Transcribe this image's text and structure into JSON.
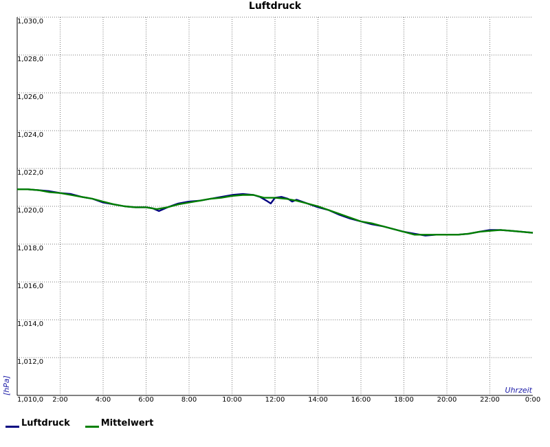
{
  "chart_data": {
    "type": "line",
    "title": "Luftdruck",
    "ylabel": "[hPa]",
    "xlabel": "Uhrzeit",
    "ylim": [
      1010.0,
      1030.0
    ],
    "xlim": [
      0,
      24
    ],
    "yticks": [
      "1,010,0",
      "1,012,0",
      "1,014,0",
      "1,016,0",
      "1,018,0",
      "1,020,0",
      "1,022,0",
      "1,024,0",
      "1,026,0",
      "1,028,0",
      "1,030,0"
    ],
    "xticks": [
      "2:00",
      "4:00",
      "6:00",
      "8:00",
      "10:00",
      "12:00",
      "14:00",
      "16:00",
      "18:00",
      "20:00",
      "22:00",
      "0:00"
    ],
    "grid": true,
    "legend_position": "bottom-left",
    "series": [
      {
        "name": "Luftdruck",
        "color": "#000080",
        "x": [
          0,
          0.5,
          1,
          1.5,
          2,
          2.5,
          3,
          3.5,
          4,
          4.5,
          5,
          5.5,
          6,
          6.3,
          6.6,
          7,
          7.5,
          8,
          8.5,
          9,
          9.5,
          10,
          10.5,
          11,
          11.3,
          11.6,
          11.8,
          12,
          12.3,
          12.6,
          12.8,
          13,
          13.5,
          14,
          14.5,
          15,
          15.5,
          16,
          16.5,
          17,
          17.5,
          18,
          18.5,
          19,
          19.5,
          20,
          20.5,
          21,
          21.5,
          22,
          22.5,
          23,
          23.5,
          24
        ],
        "y": [
          1020.9,
          1020.9,
          1020.85,
          1020.8,
          1020.7,
          1020.65,
          1020.5,
          1020.4,
          1020.2,
          1020.1,
          1020.0,
          1019.95,
          1019.95,
          1019.9,
          1019.75,
          1019.95,
          1020.15,
          1020.25,
          1020.3,
          1020.4,
          1020.5,
          1020.6,
          1020.65,
          1020.6,
          1020.5,
          1020.3,
          1020.15,
          1020.45,
          1020.5,
          1020.4,
          1020.25,
          1020.35,
          1020.15,
          1019.95,
          1019.8,
          1019.55,
          1019.35,
          1019.2,
          1019.05,
          1018.95,
          1018.8,
          1018.65,
          1018.55,
          1018.45,
          1018.5,
          1018.5,
          1018.5,
          1018.55,
          1018.65,
          1018.75,
          1018.75,
          1018.7,
          1018.65,
          1018.6
        ]
      },
      {
        "name": "Mittelwert",
        "color": "#008000",
        "x": [
          0,
          0.5,
          1,
          1.5,
          2,
          2.5,
          3,
          3.5,
          4,
          4.5,
          5,
          5.5,
          6,
          6.5,
          7,
          7.5,
          8,
          8.5,
          9,
          9.5,
          10,
          10.5,
          11,
          11.5,
          12,
          12.5,
          13,
          13.5,
          14,
          14.5,
          15,
          15.5,
          16,
          16.5,
          17,
          17.5,
          18,
          18.5,
          19,
          19.5,
          20,
          20.5,
          21,
          21.5,
          22,
          22.5,
          23,
          23.5,
          24
        ],
        "y": [
          1020.9,
          1020.9,
          1020.85,
          1020.75,
          1020.7,
          1020.6,
          1020.5,
          1020.4,
          1020.25,
          1020.1,
          1020.0,
          1019.95,
          1019.95,
          1019.85,
          1019.95,
          1020.1,
          1020.2,
          1020.3,
          1020.4,
          1020.45,
          1020.55,
          1020.6,
          1020.6,
          1020.45,
          1020.45,
          1020.4,
          1020.3,
          1020.15,
          1020.0,
          1019.8,
          1019.6,
          1019.4,
          1019.2,
          1019.1,
          1018.95,
          1018.8,
          1018.65,
          1018.5,
          1018.5,
          1018.5,
          1018.5,
          1018.5,
          1018.55,
          1018.65,
          1018.7,
          1018.75,
          1018.7,
          1018.65,
          1018.6
        ]
      }
    ]
  }
}
